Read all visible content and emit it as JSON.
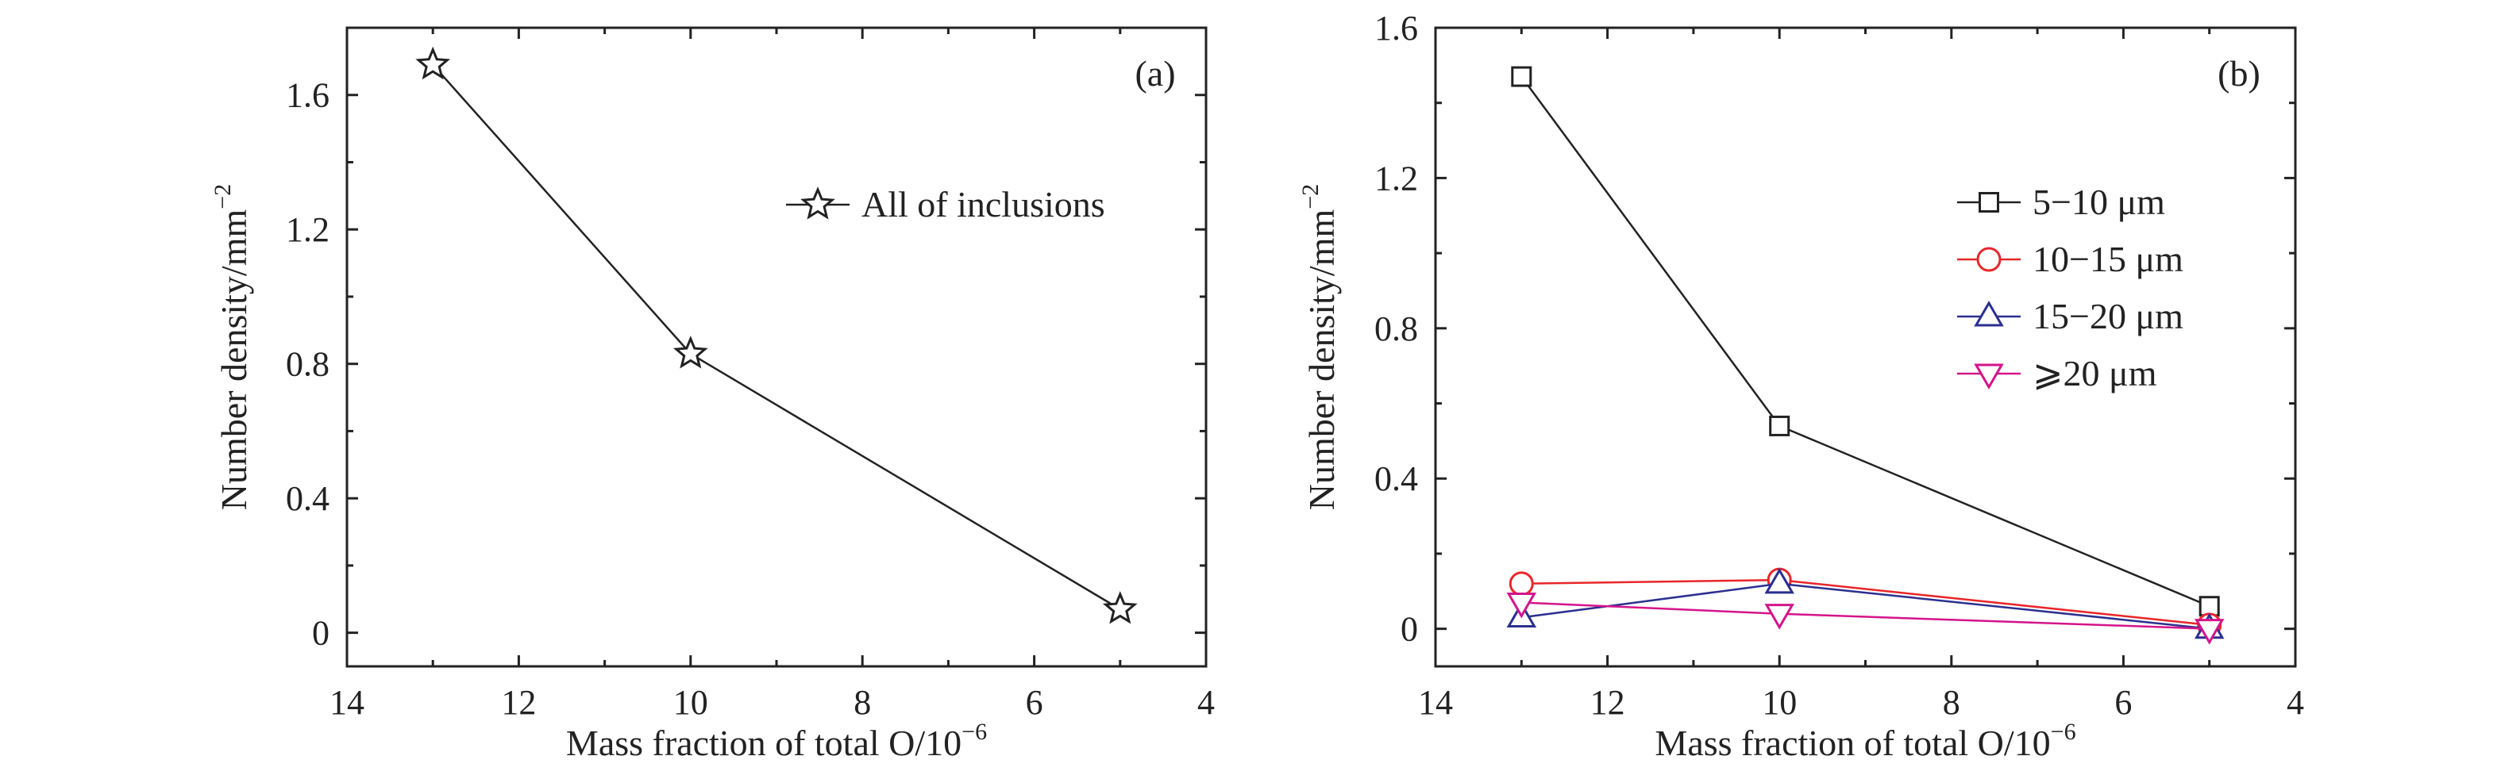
{
  "chart_data": [
    {
      "type": "line",
      "panel_label": "(a)",
      "xlabel": "Mass fraction of total O/10",
      "xlabel_exponent": "−6",
      "ylabel": "Number density/mm",
      "ylabel_exponent": "−2",
      "xlim": [
        14,
        4
      ],
      "ylim": [
        -0.1,
        1.8
      ],
      "xticks": [
        14,
        12,
        10,
        8,
        6,
        4
      ],
      "yticks": [
        0,
        0.4,
        0.8,
        1.2,
        1.6
      ],
      "ytick_labels": [
        "0",
        "0.4",
        "0.8",
        "1.2",
        "1.6"
      ],
      "grid": false,
      "legend_position": "top-right",
      "series": [
        {
          "name": "All of inclusions",
          "marker": "star",
          "color": "#222222",
          "x": [
            13,
            10,
            5
          ],
          "y": [
            1.69,
            0.83,
            0.07
          ]
        }
      ]
    },
    {
      "type": "line",
      "panel_label": "(b)",
      "xlabel": "Mass fraction of total O/10",
      "xlabel_exponent": "−6",
      "ylabel": "Number density/mm",
      "ylabel_exponent": "−2",
      "xlim": [
        14,
        4
      ],
      "ylim": [
        -0.1,
        1.6
      ],
      "xticks": [
        14,
        12,
        10,
        8,
        6,
        4
      ],
      "yticks": [
        0,
        0.4,
        0.8,
        1.2,
        1.6
      ],
      "ytick_labels": [
        "0",
        "0.4",
        "0.8",
        "1.2",
        "1.6"
      ],
      "grid": false,
      "legend_position": "top-right",
      "series": [
        {
          "name": "5−10 μm",
          "marker": "square",
          "color": "#222222",
          "x": [
            13,
            10,
            5
          ],
          "y": [
            1.47,
            0.54,
            0.06
          ]
        },
        {
          "name": "10−15 μm",
          "marker": "circle",
          "color": "#e8262a",
          "x": [
            13,
            10,
            5
          ],
          "y": [
            0.12,
            0.13,
            0.01
          ]
        },
        {
          "name": "15−20 μm",
          "marker": "triangle-up",
          "color": "#2b2f8f",
          "x": [
            13,
            10,
            5
          ],
          "y": [
            0.03,
            0.12,
            0.0
          ]
        },
        {
          "name": "⩾20 μm",
          "marker": "triangle-down",
          "color": "#d4148a",
          "x": [
            13,
            10,
            5
          ],
          "y": [
            0.07,
            0.04,
            0.0
          ]
        }
      ]
    }
  ]
}
